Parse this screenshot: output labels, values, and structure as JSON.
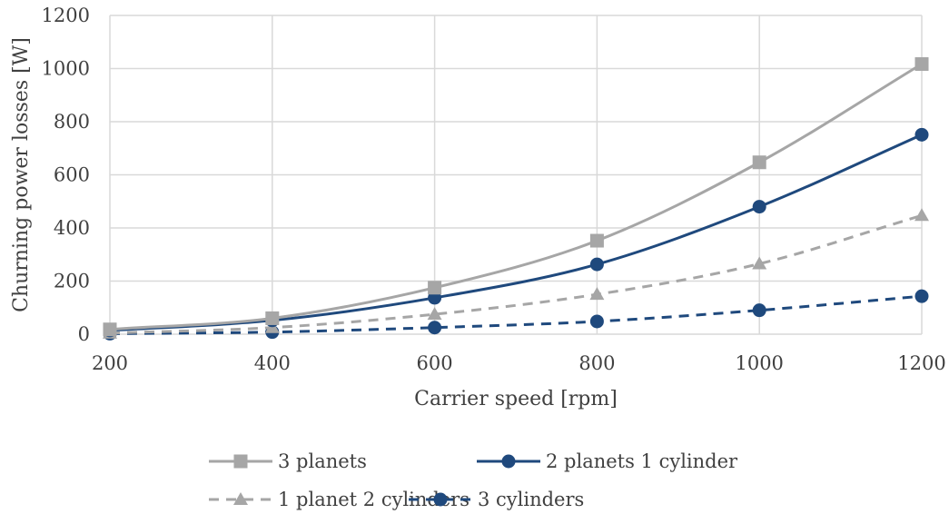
{
  "chart_data": {
    "type": "line",
    "title": "",
    "xlabel": "Carrier speed [rpm]",
    "ylabel": "Churning power losses [W]",
    "xlim": [
      200,
      1200
    ],
    "ylim": [
      0,
      1200
    ],
    "xticks": [
      200,
      400,
      600,
      800,
      1000,
      1200
    ],
    "yticks": [
      0,
      200,
      400,
      600,
      800,
      1000,
      1200
    ],
    "grid": true,
    "legend_position": "bottom",
    "x": [
      200,
      400,
      600,
      800,
      1000,
      1200
    ],
    "series": [
      {
        "name": "3 planets",
        "values": [
          18,
          60,
          175,
          352,
          647,
          1017
        ],
        "color": "#a6a6a6",
        "dash": "solid",
        "marker": "square"
      },
      {
        "name": "2 planets 1 cylinder",
        "values": [
          14,
          52,
          137,
          263,
          480,
          751
        ],
        "color": "#1f497d",
        "dash": "solid",
        "marker": "circle"
      },
      {
        "name": "1 planet 2 cylinders",
        "values": [
          4,
          25,
          75,
          150,
          265,
          447
        ],
        "color": "#a6a6a6",
        "dash": "dashed",
        "marker": "triangle"
      },
      {
        "name": "3 cylinders",
        "values": [
          2,
          8,
          25,
          48,
          90,
          143
        ],
        "color": "#1f497d",
        "dash": "dashed",
        "marker": "circle"
      }
    ]
  }
}
